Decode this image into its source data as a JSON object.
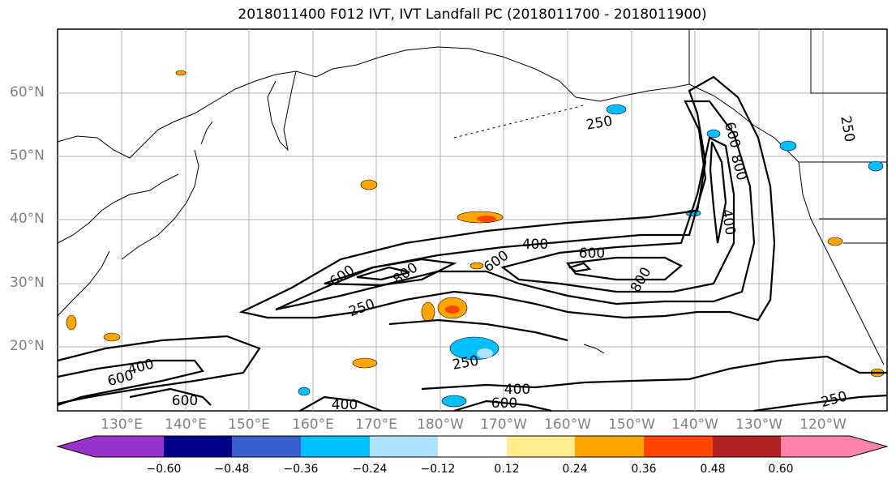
{
  "title": "2018011400 F012 IVT, IVT Landfall PC (2018011700 - 2018011900)",
  "lat_labels": [
    "60°N",
    "50°N",
    "40°N",
    "30°N",
    "20°N"
  ],
  "lon_labels": [
    "130°E",
    "140°E",
    "150°E",
    "160°E",
    "170°E",
    "180°W",
    "170°W",
    "160°W",
    "150°W",
    "140°W",
    "130°W",
    "120°W"
  ],
  "contour_labels": {
    "c250_alaska": "250",
    "c600_nw": "600",
    "c800_nw": "800",
    "c400_ne": "400",
    "c250_ne": "250",
    "c400_mid": "400",
    "c600_mid": "600",
    "c600_left": "600",
    "c800_left": "800",
    "c600_right": "600",
    "c800_right": "800",
    "c250_center": "250",
    "c250_south": "250",
    "c600_sw": "600",
    "c400_sw": "400",
    "c600_bottom": "600",
    "c400_bottom": "400",
    "c400_s": "400",
    "c600_s": "600",
    "c250_se": "250"
  },
  "colorbar": {
    "ticks": [
      "−0.60",
      "−0.48",
      "−0.36",
      "−0.24",
      "−0.12",
      "0.12",
      "0.24",
      "0.36",
      "0.48",
      "0.60"
    ],
    "colors": [
      "#9933cc",
      "#00008b",
      "#3a5fcd",
      "#00bfff",
      "#b0e2ff",
      "#ffffff",
      "#ffec8b",
      "#ffa500",
      "#ff4500",
      "#b22222",
      "#ff82ab"
    ]
  }
}
